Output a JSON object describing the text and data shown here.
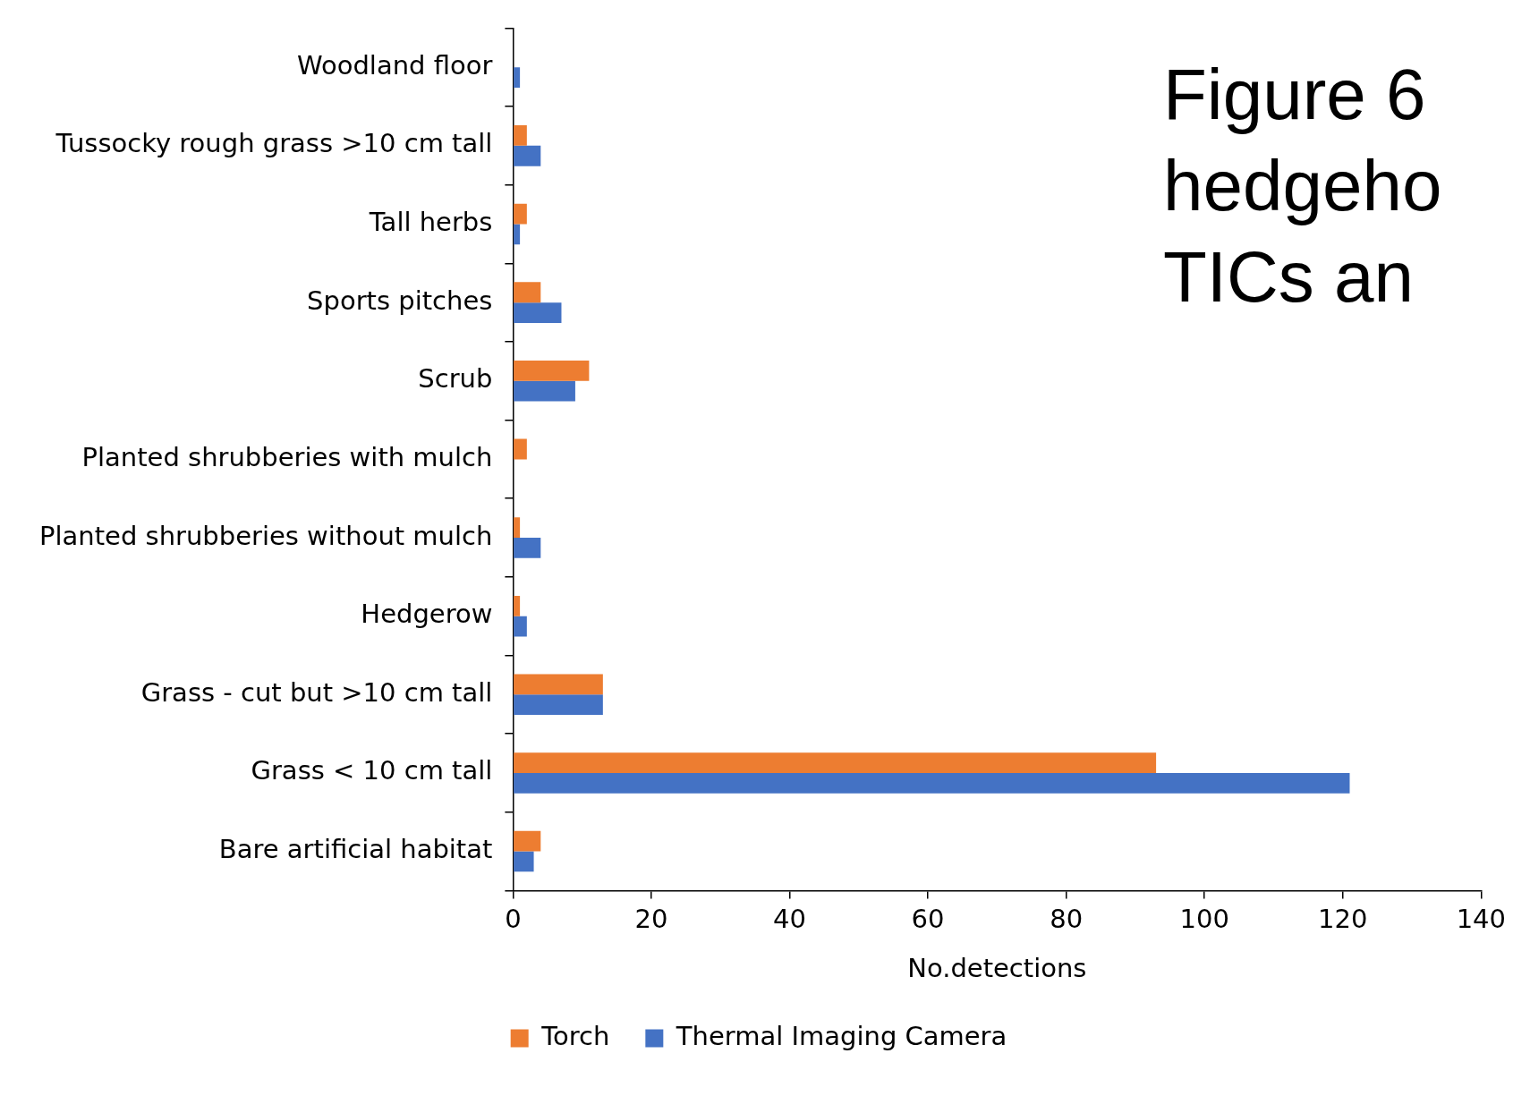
{
  "chart_data": {
    "type": "bar",
    "orientation": "horizontal",
    "annotations": [
      "Figure 6",
      "hedgeho",
      "TICs an"
    ],
    "xlabel": "No.detections",
    "categories": [
      "Woodland floor",
      "Tussocky rough grass >10 cm tall",
      "Tall herbs",
      "Sports pitches",
      "Scrub",
      "Planted shrubberies with mulch",
      "Planted shrubberies without mulch",
      "Hedgerow",
      "Grass - cut but >10 cm tall",
      "Grass < 10 cm tall",
      "Bare artificial habitat"
    ],
    "series": [
      {
        "name": "Torch",
        "color": "#ed7d31",
        "values": [
          0,
          2,
          2,
          4,
          11,
          2,
          1,
          1,
          13,
          93,
          4
        ]
      },
      {
        "name": "Thermal Imaging Camera",
        "color": "#4472c4",
        "values": [
          1,
          4,
          1,
          7,
          9,
          0,
          4,
          2,
          13,
          121,
          3
        ]
      }
    ],
    "xlim": [
      0,
      140
    ],
    "xticks": [
      0,
      20,
      40,
      60,
      80,
      100,
      120,
      140
    ],
    "grid": false,
    "legend": "bottom"
  }
}
